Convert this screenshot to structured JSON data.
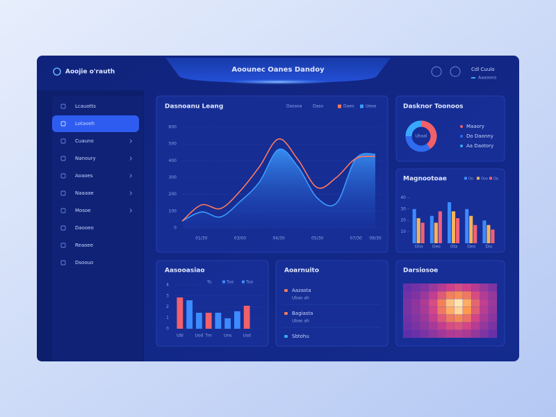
{
  "header": {
    "logo": "Aoojie o'rauth",
    "title": "Aoounec Oanes Dandoy",
    "user": "Cdl Cuulo",
    "user_sub": "Aaaoono"
  },
  "sidebar": {
    "items": [
      "Lcauotts",
      "Lotaoeh",
      "Cuauno",
      "Nanoury",
      "Aoaoes",
      "Naaaae",
      "Mosoe",
      "Daooeo",
      "Reaoee",
      "Dsoouo"
    ],
    "active": 1,
    "expandable": [
      false,
      false,
      true,
      true,
      true,
      true,
      true,
      false,
      false,
      false
    ]
  },
  "activity": {
    "title": "Aoarnuito",
    "items": [
      {
        "title": "Aazasta",
        "sub": "Ubao ah",
        "color": "#f07a5a"
      },
      {
        "title": "Bagiasta",
        "sub": "Ubao ah",
        "color": "#f07a5a"
      },
      {
        "title": "Sbtohu",
        "color": "#3aa8ff"
      }
    ]
  },
  "chart_data": [
    {
      "type": "line",
      "title": "Dasnoanu Leang",
      "filters": [
        "Dasaoa",
        "Daso"
      ],
      "categories": [
        null,
        "01/30",
        null,
        "03/00",
        null,
        "04/30",
        null,
        "05/30",
        null,
        "07/30",
        "09/30"
      ],
      "series": [
        {
          "name": "Daeo",
          "color": "#ff7a5c",
          "values": [
            41,
            137,
            116,
            219,
            364,
            530,
            406,
            240,
            302,
            414,
            426
          ]
        },
        {
          "name": "Ueoo",
          "color": "#3c9bff",
          "values": [
            41,
            95,
            66,
            157,
            273,
            468,
            364,
            178,
            149,
            414,
            439
          ]
        }
      ],
      "ylim": [
        0,
        600
      ],
      "yticks": [
        0,
        100,
        200,
        300,
        400,
        500,
        600
      ],
      "grid": true
    },
    {
      "type": "pie",
      "title": "Dasknor Toonoos",
      "center_label": "Ubaal",
      "categories": [
        "Maaory",
        "Do Daonny",
        "Aa Daotory"
      ],
      "values": [
        40,
        35,
        25
      ],
      "colors": [
        "#f2606a",
        "#2f6cf0",
        "#39a9ff"
      ]
    },
    {
      "type": "bar",
      "title": "Magnootoae",
      "categories": [
        "Gho",
        "Oeo",
        "Ota",
        "Oeo",
        "Dio"
      ],
      "series": [
        {
          "name": "Oo",
          "color": "#3d8bff",
          "values": [
            30,
            24,
            36,
            30,
            20
          ]
        },
        {
          "name": "Ooo",
          "color": "#f4b35c",
          "values": [
            22,
            18,
            28,
            24,
            16
          ]
        },
        {
          "name": "Oa",
          "color": "#f2607a",
          "values": [
            18,
            28,
            22,
            16,
            12
          ]
        }
      ],
      "ylim": [
        0,
        50
      ],
      "yticks": [
        10,
        20,
        30,
        40
      ]
    },
    {
      "type": "bar",
      "title": "Aasooasiao",
      "legend": [
        "Tu",
        "Tuo",
        "Tuo"
      ],
      "categories": [
        "Ubl",
        null,
        "Uod",
        "Tm",
        null,
        "Uns",
        null,
        "Usd"
      ],
      "values": [
        2.86,
        2.6,
        1.46,
        1.46,
        1.46,
        0.95,
        1.6,
        2.1
      ],
      "colors": [
        "#f2606a",
        "#3d8bff",
        "#3d8bff",
        "#f2606a",
        "#3d8bff",
        "#3d8bff",
        "#3d8bff",
        "#f2606a"
      ],
      "ylim": [
        0,
        4
      ],
      "yticks": [
        0,
        1,
        2,
        3,
        4
      ],
      "grid": true
    },
    {
      "type": "heatmap",
      "title": "Darsiosoe",
      "values": [
        [
          10,
          15,
          20,
          30,
          40,
          50,
          55,
          50,
          40,
          30,
          20
        ],
        [
          15,
          20,
          30,
          45,
          60,
          75,
          80,
          72,
          55,
          40,
          28
        ],
        [
          18,
          25,
          38,
          55,
          75,
          92,
          98,
          88,
          65,
          45,
          30
        ],
        [
          18,
          25,
          36,
          52,
          72,
          88,
          95,
          85,
          62,
          42,
          28
        ],
        [
          15,
          22,
          30,
          45,
          60,
          72,
          78,
          70,
          52,
          36,
          24
        ],
        [
          12,
          18,
          25,
          35,
          45,
          55,
          58,
          52,
          40,
          28,
          18
        ],
        [
          8,
          12,
          18,
          25,
          32,
          38,
          40,
          36,
          28,
          20,
          12
        ]
      ],
      "zlim": [
        0,
        100
      ]
    }
  ]
}
